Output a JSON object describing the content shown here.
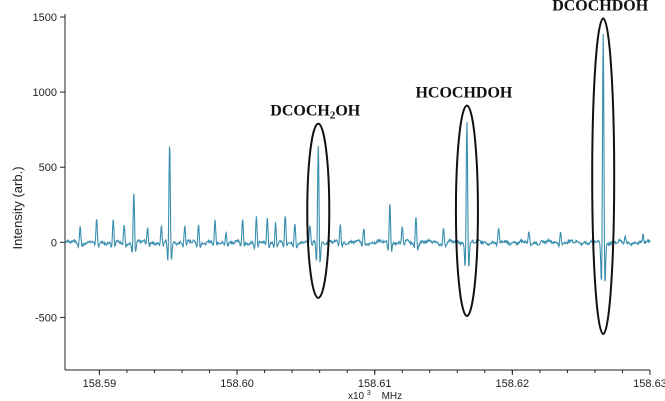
{
  "chart_data": {
    "type": "line",
    "title": "",
    "xlabel": "MHz",
    "x_multiplier_label": "x10",
    "x_multiplier_exponent": "3",
    "ylabel": "Intensity (arb.)",
    "xlim": [
      158.5875,
      158.63
    ],
    "ylim": [
      -850,
      1520
    ],
    "x_ticks": [
      158.59,
      158.6,
      158.61,
      158.62,
      158.63
    ],
    "x_tick_labels": [
      "158.59",
      "158.60",
      "158.61",
      "158.62",
      "158.63"
    ],
    "y_ticks": [
      -500,
      0,
      500,
      1000,
      1500
    ],
    "y_tick_labels": [
      "-500",
      "0",
      "500",
      "1000",
      "1500"
    ],
    "grid": false,
    "series": [
      {
        "color": "#3a8fb0",
        "baseline_noise": 25,
        "features": [
          {
            "x": 158.5886,
            "height": 110,
            "width": 9e-05
          },
          {
            "x": 158.5898,
            "height": 140,
            "width": 9e-05
          },
          {
            "x": 158.591,
            "height": 160,
            "width": 9e-05
          },
          {
            "x": 158.5918,
            "height": 110,
            "width": 9e-05
          },
          {
            "x": 158.5925,
            "height": 340,
            "width": 9e-05
          },
          {
            "x": 158.5935,
            "height": 100,
            "width": 9e-05
          },
          {
            "x": 158.5945,
            "height": 115,
            "width": 9e-05
          },
          {
            "x": 158.5951,
            "height": 660,
            "width": 9e-05
          },
          {
            "x": 158.5962,
            "height": 110,
            "width": 9e-05
          },
          {
            "x": 158.5972,
            "height": 130,
            "width": 9e-05
          },
          {
            "x": 158.5984,
            "height": 140,
            "width": 9e-05
          },
          {
            "x": 158.5992,
            "height": 80,
            "width": 9e-05
          },
          {
            "x": 158.6004,
            "height": 150,
            "width": 9e-05
          },
          {
            "x": 158.6014,
            "height": 170,
            "width": 9e-05
          },
          {
            "x": 158.6022,
            "height": 160,
            "width": 9e-05
          },
          {
            "x": 158.6028,
            "height": 140,
            "width": 9e-05
          },
          {
            "x": 158.6035,
            "height": 170,
            "width": 9e-05
          },
          {
            "x": 158.6042,
            "height": 130,
            "width": 9e-05
          },
          {
            "x": 158.6053,
            "height": 110,
            "width": 9e-05
          },
          {
            "x": 158.6059,
            "height": 660,
            "width": 9e-05
          },
          {
            "x": 158.6075,
            "height": 120,
            "width": 9e-05
          },
          {
            "x": 158.6092,
            "height": 90,
            "width": 9e-05
          },
          {
            "x": 158.6111,
            "height": 270,
            "width": 9e-05
          },
          {
            "x": 158.612,
            "height": 100,
            "width": 9e-05
          },
          {
            "x": 158.613,
            "height": 180,
            "width": 9e-05
          },
          {
            "x": 158.615,
            "height": 100,
            "width": 9e-05
          },
          {
            "x": 158.6167,
            "height": 820,
            "width": 9e-05
          },
          {
            "x": 158.619,
            "height": 80,
            "width": 9e-05
          },
          {
            "x": 158.6212,
            "height": 70,
            "width": 9e-05
          },
          {
            "x": 158.6235,
            "height": 80,
            "width": 9e-05
          },
          {
            "x": 158.6266,
            "height": 1390,
            "width": 9e-05
          },
          {
            "x": 158.6282,
            "height": 40,
            "width": 9e-05
          },
          {
            "x": 158.6295,
            "height": 40,
            "width": 9e-05
          }
        ]
      }
    ],
    "annotations": [
      {
        "label_main": "DCOCH",
        "label_sub": "2",
        "label_tail": "OH",
        "x": 158.6059,
        "y_top": 790,
        "y_bottom": -370
      },
      {
        "label_main": "HCOCHDOH",
        "label_sub": "",
        "label_tail": "",
        "x": 158.6167,
        "y_top": 910,
        "y_bottom": -490
      },
      {
        "label_main": "DCOCHDOH",
        "label_sub": "",
        "label_tail": "",
        "x": 158.6266,
        "y_top": 1490,
        "y_bottom": -610
      }
    ],
    "annotation_label_x_offset": [
      -3,
      -3,
      -3
    ]
  }
}
